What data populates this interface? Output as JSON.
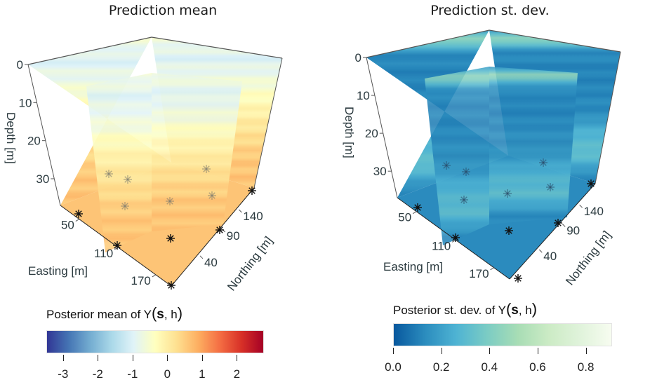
{
  "chart_data": [
    {
      "type": "heatmap",
      "subtype": "3d-fence-slices",
      "title": "Prediction mean",
      "xlabel": "Easting [m]",
      "ylabel": "Northing [m]",
      "zlabel": "Depth [m]",
      "x_ticks": [
        50,
        110,
        170
      ],
      "y_ticks": [
        40,
        90,
        140
      ],
      "z_ticks": [
        0,
        10,
        20,
        30
      ],
      "z_reversed": true,
      "colorbar": {
        "title_prefix": "Posterior mean of Y",
        "title_bold": "s",
        "title_suffix": ", h",
        "ticks": [
          -3,
          -2,
          -1,
          0,
          1,
          2
        ],
        "range": [
          -3.4,
          2.7
        ],
        "colormap": "RdYlBu_r",
        "colors": [
          "#313695",
          "#4575b4",
          "#74add1",
          "#abd9e9",
          "#e0f3f8",
          "#ffffbf",
          "#fee090",
          "#fdae61",
          "#f46d43",
          "#d73027",
          "#a50026"
        ]
      },
      "depth_profile": [
        {
          "depth": 0,
          "value": -0.6
        },
        {
          "depth": 5,
          "value": -1.0
        },
        {
          "depth": 10,
          "value": -0.7
        },
        {
          "depth": 15,
          "value": -0.3
        },
        {
          "depth": 20,
          "value": 0.0
        },
        {
          "depth": 25,
          "value": 0.3
        },
        {
          "depth": 30,
          "value": 0.55
        },
        {
          "depth": 35,
          "value": 0.6
        }
      ],
      "observation_marker": "asterisk"
    },
    {
      "type": "heatmap",
      "subtype": "3d-fence-slices",
      "title": "Prediction st. dev.",
      "xlabel": "Easting [m]",
      "ylabel": "Northing [m]",
      "zlabel": "Depth [m]",
      "x_ticks": [
        50,
        110,
        170
      ],
      "y_ticks": [
        40,
        90,
        140
      ],
      "z_ticks": [
        0,
        10,
        20,
        30
      ],
      "z_reversed": true,
      "colorbar": {
        "title_prefix": "Posterior st. dev. of Y",
        "title_bold": "s",
        "title_suffix": ", h",
        "ticks": [
          0.0,
          0.2,
          0.4,
          0.6,
          0.8
        ],
        "tick_labels": [
          "0.0",
          "0.2",
          "0.4",
          "0.6",
          "0.8"
        ],
        "range": [
          0.0,
          0.85
        ],
        "colormap": "GnBu_r",
        "colors": [
          "#08589e",
          "#2b8cbe",
          "#4eb3d3",
          "#7bccc4",
          "#a8ddb5",
          "#ccebc5",
          "#e0f3db",
          "#f7fcf0"
        ]
      },
      "depth_profile": [
        {
          "depth": 0,
          "value": 0.15
        },
        {
          "depth": 2,
          "value": 0.45
        },
        {
          "depth": 5,
          "value": 0.12
        },
        {
          "depth": 10,
          "value": 0.1
        },
        {
          "depth": 20,
          "value": 0.12
        },
        {
          "depth": 25,
          "value": 0.25
        },
        {
          "depth": 30,
          "value": 0.3
        },
        {
          "depth": 35,
          "value": 0.12
        }
      ],
      "observation_marker": "asterisk"
    }
  ]
}
